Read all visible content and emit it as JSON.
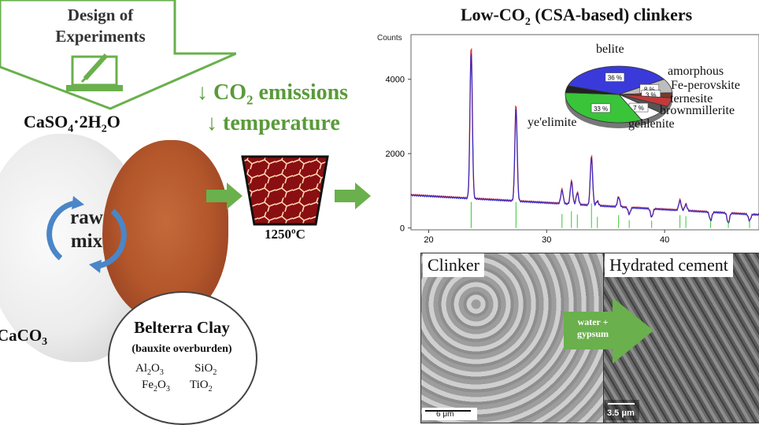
{
  "doe": {
    "line1": "Design of",
    "line2": "Experiments"
  },
  "formulas": {
    "caso4_prefix": "CaSO",
    "caso4_sub": "4",
    "caso4_suffix": "·2H",
    "caso4_sub2": "2",
    "caso4_end": "O",
    "caco3_prefix": "CaCO",
    "caco3_sub": "3"
  },
  "raw_mix": {
    "line1": "raw",
    "line2": "mix"
  },
  "reductions": {
    "co2_prefix": "↓ CO",
    "co2_sub": "2",
    "co2_suffix": " emissions",
    "temp": "↓ temperature"
  },
  "kiln": {
    "temp": "1250ºC"
  },
  "clay": {
    "title": "Belterra Clay",
    "subtitle": "(bauxite overburden)",
    "ox1": "Al",
    "ox1_sub": "2",
    "ox1_b": "O",
    "ox1_sub2": "3",
    "ox2": "SiO",
    "ox2_sub": "2",
    "ox3": "Fe",
    "ox3_sub": "2",
    "ox3_b": "O",
    "ox3_sub2": "3",
    "ox4": "TiO",
    "ox4_sub": "2"
  },
  "xrd_title": {
    "prefix": "Low-CO",
    "sub": "2",
    "suffix": " (CSA-based) clinkers"
  },
  "chart_data": {
    "type": "line",
    "ylabel": "Counts",
    "xlim": [
      18.5,
      48
    ],
    "ylim": [
      -50,
      5200
    ],
    "xticks": [
      20,
      30,
      40
    ],
    "yticks": [
      0,
      2000,
      4000
    ],
    "peaks": [
      {
        "x": 23.6,
        "y": 4950
      },
      {
        "x": 27.4,
        "y": 3450
      },
      {
        "x": 31.3,
        "y": 1250
      },
      {
        "x": 32.1,
        "y": 1500
      },
      {
        "x": 32.6,
        "y": 1200
      },
      {
        "x": 33.8,
        "y": 2200
      },
      {
        "x": 34.3,
        "y": 1000
      },
      {
        "x": 36.1,
        "y": 1150
      },
      {
        "x": 37.0,
        "y": 700
      },
      {
        "x": 38.9,
        "y": 650
      },
      {
        "x": 41.3,
        "y": 1150
      },
      {
        "x": 41.8,
        "y": 1050
      },
      {
        "x": 43.9,
        "y": 650
      },
      {
        "x": 45.4,
        "y": 600
      },
      {
        "x": 47.2,
        "y": 700
      }
    ],
    "baseline": 880,
    "pie": {
      "slices": [
        {
          "label": "belite",
          "value": 36,
          "text": "36 %",
          "color": "#3a3adb"
        },
        {
          "label": "amorphous",
          "value": 8,
          "text": "8 %",
          "color": "#bdbdbd"
        },
        {
          "label": "Fe-perovskite",
          "value": 3,
          "text": "3 %",
          "color": "#7a3a2a"
        },
        {
          "label": "ternesite",
          "value": 5,
          "text": "",
          "color": "#c43a3a"
        },
        {
          "label": "brownmillerite",
          "value": 4,
          "text": "",
          "color": "#555555"
        },
        {
          "label": "gehlenite",
          "value": 7,
          "text": "7 %",
          "color": "#ffffff"
        },
        {
          "label": "ye'elimite",
          "value": 33,
          "text": "33 %",
          "color": "#39c43a"
        },
        {
          "label": "",
          "value": 4,
          "text": "",
          "color": "#222222"
        }
      ]
    }
  },
  "sem": {
    "clinker_label": "Clinker",
    "hydrated_label": "Hydrated cement",
    "arrow_line1": "water +",
    "arrow_line2": "gypsum",
    "scale1": "6 μm",
    "scale2": "3.5 μm"
  },
  "colors": {
    "green": "#5a9a3a",
    "arrow_green": "#6ab04c"
  }
}
